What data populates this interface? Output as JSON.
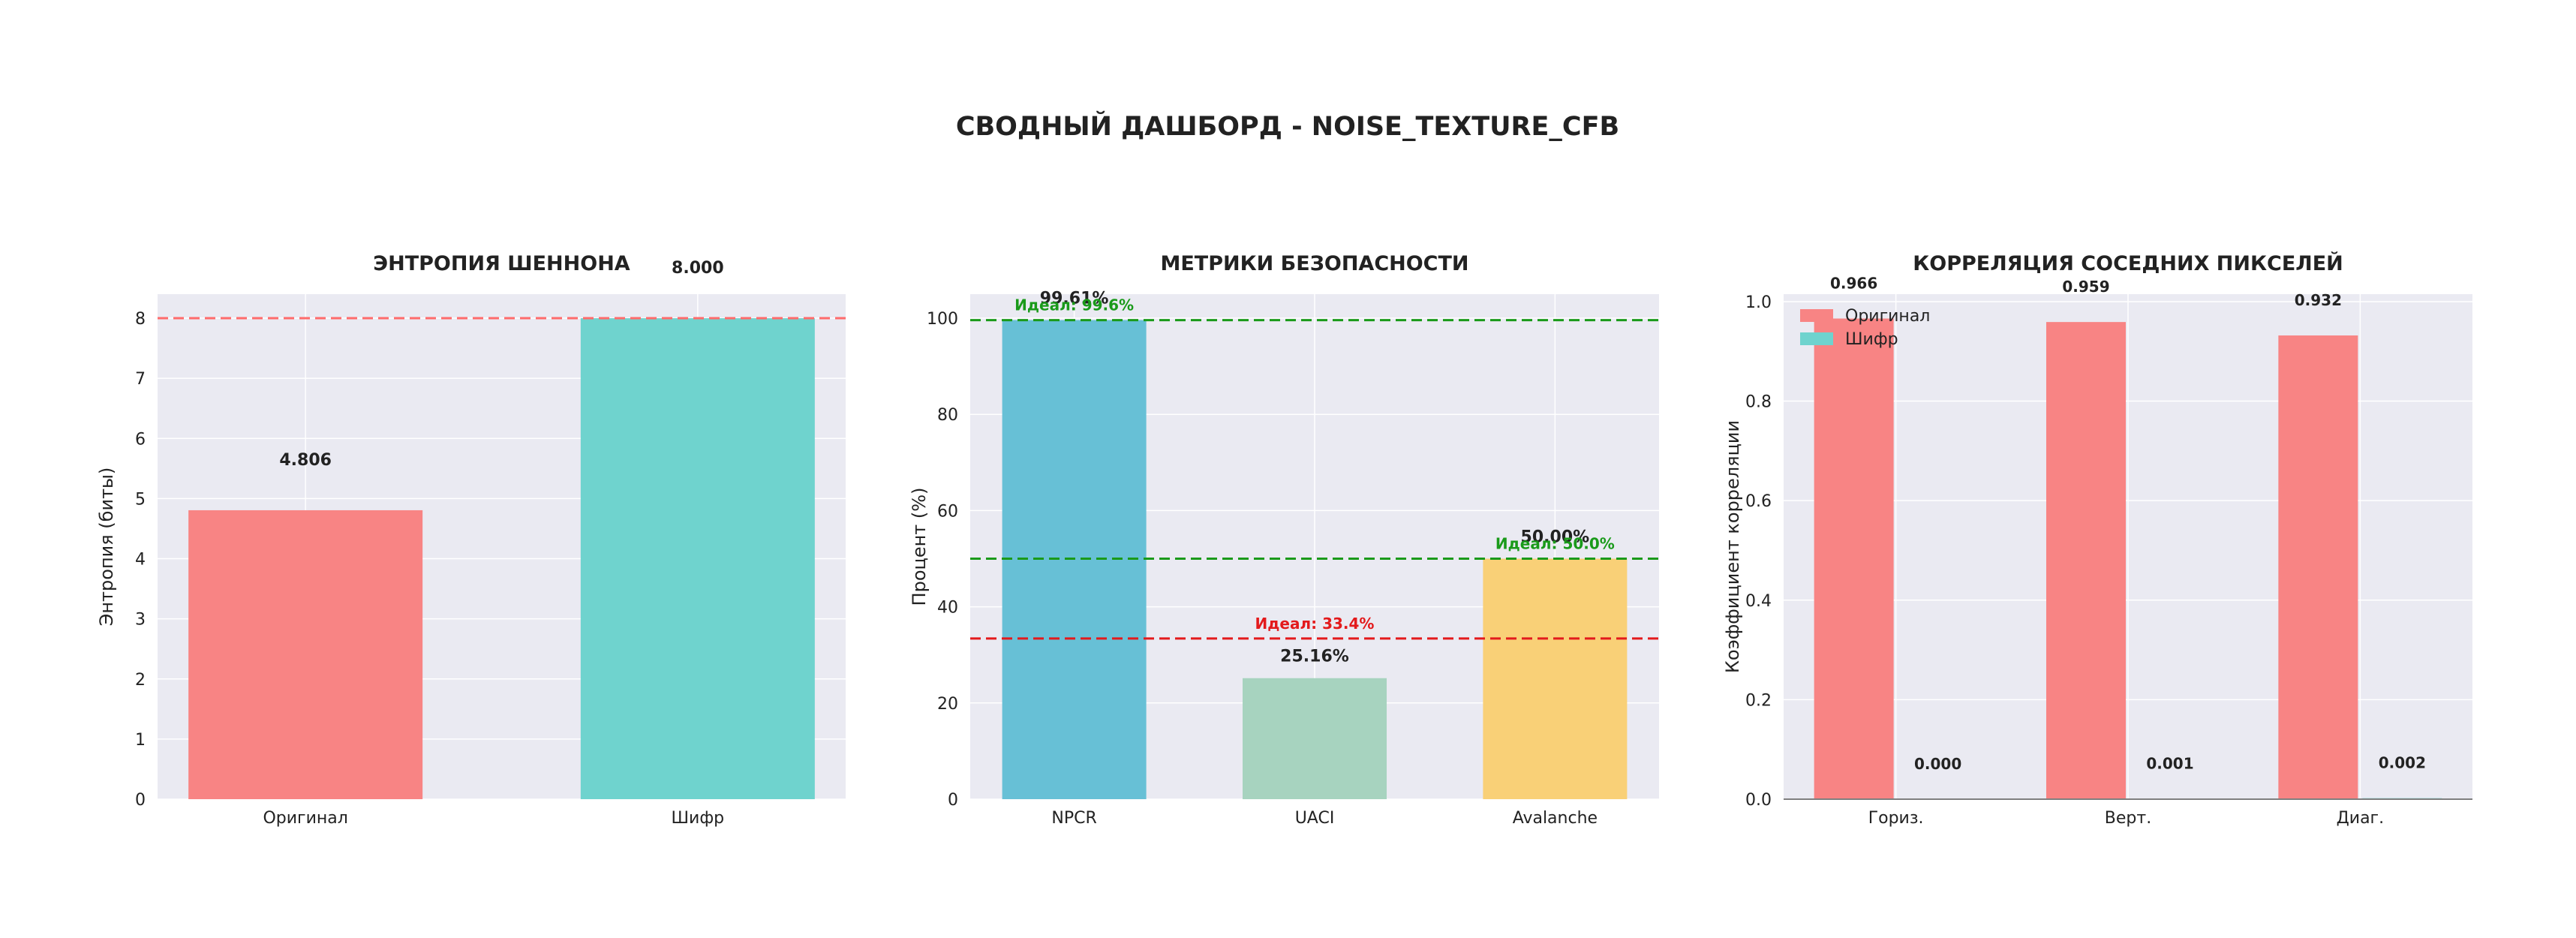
{
  "page": {
    "suptitle": "СВОДНЫЙ ДАШБОРД - NOISE_TEXTURE_CFB"
  },
  "colors": {
    "panel_bg": "#eaeaf2",
    "grid": "#ffffff",
    "text": "#222222",
    "original": "#f88484",
    "cipher": "#6fd3ce",
    "npcr": "#67c0d6",
    "uaci": "#a7d3bf",
    "avalanche": "#f9d077",
    "ideal_red": "#e31a1c",
    "ideal_green": "#1a9a1a",
    "ideal_line_red": "#ff6b6b"
  },
  "chart_data": [
    {
      "id": "entropy",
      "type": "bar",
      "title": "ЭНТРОПИЯ ШЕННОНА",
      "xlabel": "",
      "ylabel": "Энтропия (биты)",
      "ylim": [
        0,
        8.4
      ],
      "yticks": [
        0,
        1,
        2,
        3,
        4,
        5,
        6,
        7,
        8
      ],
      "ytick_labels": [
        "0",
        "1",
        "2",
        "3",
        "4",
        "5",
        "6",
        "7",
        "8"
      ],
      "categories": [
        "Оригинал",
        "Шифр"
      ],
      "values": [
        4.806,
        8.0
      ],
      "value_labels": [
        "4.806",
        "8.000"
      ],
      "bar_colors": [
        "#f88484",
        "#6fd3ce"
      ],
      "reference_lines": [
        {
          "y": 8.0,
          "color": "#ff6b6b",
          "style": "dashed",
          "label": ""
        }
      ],
      "grid": true
    },
    {
      "id": "security",
      "type": "bar",
      "title": "МЕТРИКИ БЕЗОПАСНОСТИ",
      "xlabel": "",
      "ylabel": "Процент (%)",
      "ylim": [
        0,
        105
      ],
      "yticks": [
        0,
        20,
        40,
        60,
        80,
        100
      ],
      "ytick_labels": [
        "0",
        "20",
        "40",
        "60",
        "80",
        "100"
      ],
      "categories": [
        "NPCR",
        "UACI",
        "Avalanche"
      ],
      "values": [
        99.61,
        25.16,
        50.0
      ],
      "value_labels": [
        "99.61%",
        "25.16%",
        "50.00%"
      ],
      "bar_colors": [
        "#67c0d6",
        "#a7d3bf",
        "#f9d077"
      ],
      "reference_lines": [
        {
          "y": 99.6,
          "color": "#1a9a1a",
          "style": "dashed",
          "label": "Идеал: 99.6%",
          "category": 0
        },
        {
          "y": 33.4,
          "color": "#e31a1c",
          "style": "dashed",
          "label": "Идеал: 33.4%",
          "category": 1
        },
        {
          "y": 50.0,
          "color": "#1a9a1a",
          "style": "dashed",
          "label": "Идеал: 50.0%",
          "category": 2
        }
      ],
      "grid": true
    },
    {
      "id": "correlation",
      "type": "bar",
      "title": "КОРРЕЛЯЦИЯ СОСЕДНИХ ПИКСЕЛЕЙ",
      "xlabel": "",
      "ylabel": "Коэффициент корреляции",
      "ylim": [
        0,
        1.015
      ],
      "yticks": [
        0.0,
        0.2,
        0.4,
        0.6,
        0.8,
        1.0
      ],
      "ytick_labels": [
        "0.0",
        "0.2",
        "0.4",
        "0.6",
        "0.8",
        "1.0"
      ],
      "categories": [
        "Гориз.",
        "Верт.",
        "Диаг."
      ],
      "series": [
        {
          "name": "Оригинал",
          "values": [
            0.966,
            0.959,
            0.932
          ],
          "value_labels": [
            "0.966",
            "0.959",
            "0.932"
          ],
          "color": "#f88484"
        },
        {
          "name": "Шифр",
          "values": [
            0.0,
            0.001,
            0.002
          ],
          "value_labels": [
            "0.000",
            "0.001",
            "0.002"
          ],
          "color": "#6fd3ce"
        }
      ],
      "legend_position": "top-left",
      "grid": true
    }
  ]
}
